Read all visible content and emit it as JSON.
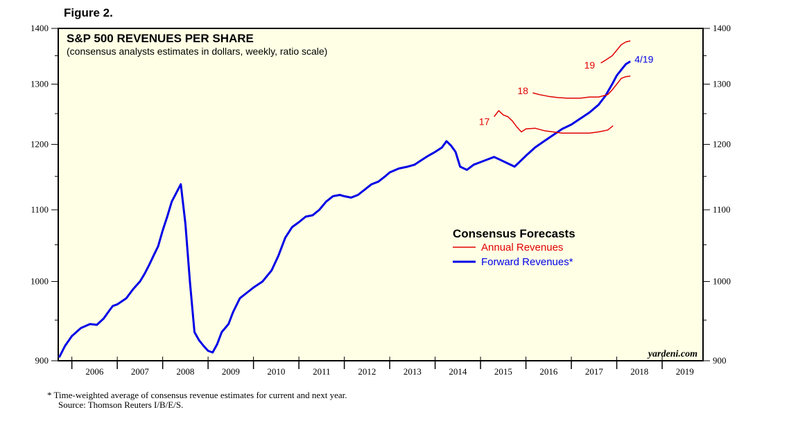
{
  "figure_label": "Figure 2.",
  "footnote": {
    "line1": "*   Time-weighted average of consensus revenue estimates for current and next year.",
    "line2": "Source: Thomson Reuters I/B/E/S."
  },
  "chart_data": {
    "type": "line",
    "title": "S&P 500 REVENUES PER SHARE",
    "subtitle": "(consensus analysts estimates in dollars, weekly, ratio scale)",
    "watermark": "yardeni.com",
    "y_scale": "log",
    "ylim": [
      900,
      1400
    ],
    "xlim": [
      2005.7,
      2019.9
    ],
    "y_ticks": [
      900,
      1000,
      1100,
      1200,
      1300,
      1400
    ],
    "x_tick_labels": [
      "2006",
      "2007",
      "2008",
      "2009",
      "2010",
      "2011",
      "2012",
      "2013",
      "2014",
      "2015",
      "2016",
      "2017",
      "2018",
      "2019"
    ],
    "grid": false,
    "background": "#ffffe5",
    "legend": {
      "title": "Consensus Forecasts",
      "position": "center-right",
      "entries": [
        {
          "label": "Annual Revenues",
          "color": "#e00000"
        },
        {
          "label": "Forward Revenues*",
          "color": "#0000e6"
        }
      ]
    },
    "series": [
      {
        "name": "Forward Revenues*",
        "color": "#0000e6",
        "end_label": "4/19",
        "x": [
          2005.72,
          2005.85,
          2006.0,
          2006.2,
          2006.4,
          2006.55,
          2006.7,
          2006.8,
          2006.9,
          2007.0,
          2007.2,
          2007.35,
          2007.5,
          2007.6,
          2007.7,
          2007.8,
          2007.9,
          2008.0,
          2008.1,
          2008.2,
          2008.3,
          2008.4,
          2008.5,
          2008.6,
          2008.7,
          2008.8,
          2008.9,
          2009.0,
          2009.1,
          2009.2,
          2009.3,
          2009.45,
          2009.55,
          2009.7,
          2009.85,
          2010.0,
          2010.2,
          2010.4,
          2010.55,
          2010.7,
          2010.85,
          2011.0,
          2011.15,
          2011.3,
          2011.45,
          2011.6,
          2011.75,
          2011.9,
          2012.0,
          2012.15,
          2012.3,
          2012.45,
          2012.6,
          2012.75,
          2012.9,
          2013.0,
          2013.2,
          2013.4,
          2013.55,
          2013.7,
          2013.85,
          2014.0,
          2014.15,
          2014.25,
          2014.35,
          2014.45,
          2014.55,
          2014.7,
          2014.85,
          2015.0,
          2015.15,
          2015.3,
          2015.45,
          2015.6,
          2015.75,
          2015.9,
          2016.0,
          2016.2,
          2016.4,
          2016.6,
          2016.8,
          2017.0,
          2017.2,
          2017.4,
          2017.6,
          2017.75,
          2017.9,
          2018.0,
          2018.1,
          2018.2,
          2018.3
        ],
        "y": [
          904,
          918,
          930,
          940,
          945,
          944,
          952,
          960,
          968,
          970,
          978,
          990,
          1000,
          1010,
          1022,
          1035,
          1048,
          1070,
          1090,
          1112,
          1125,
          1138,
          1080,
          1000,
          935,
          925,
          918,
          912,
          910,
          920,
          935,
          945,
          960,
          978,
          985,
          992,
          1000,
          1015,
          1035,
          1060,
          1075,
          1082,
          1090,
          1092,
          1100,
          1112,
          1120,
          1122,
          1120,
          1118,
          1122,
          1130,
          1138,
          1142,
          1150,
          1156,
          1162,
          1165,
          1168,
          1175,
          1182,
          1188,
          1195,
          1205,
          1198,
          1188,
          1165,
          1160,
          1168,
          1172,
          1176,
          1180,
          1175,
          1170,
          1165,
          1175,
          1182,
          1195,
          1205,
          1215,
          1225,
          1232,
          1242,
          1252,
          1265,
          1280,
          1300,
          1315,
          1325,
          1335,
          1340
        ]
      },
      {
        "name": "17",
        "color": "#e00000",
        "x": [
          2015.3,
          2015.4,
          2015.5,
          2015.6,
          2015.7,
          2015.8,
          2015.9,
          2016.0,
          2016.2,
          2016.4,
          2016.6,
          2016.8,
          2017.0,
          2017.2,
          2017.4,
          2017.6,
          2017.8,
          2017.92
        ],
        "y": [
          1245,
          1255,
          1248,
          1245,
          1238,
          1228,
          1220,
          1225,
          1226,
          1222,
          1220,
          1218,
          1218,
          1218,
          1218,
          1220,
          1223,
          1230
        ]
      },
      {
        "name": "18",
        "color": "#e00000",
        "x": [
          2016.15,
          2016.3,
          2016.5,
          2016.7,
          2016.9,
          2017.0,
          2017.2,
          2017.4,
          2017.6,
          2017.8,
          2017.9,
          2018.0,
          2018.1,
          2018.2,
          2018.3
        ],
        "y": [
          1285,
          1282,
          1279,
          1277,
          1276,
          1276,
          1276,
          1278,
          1278,
          1282,
          1290,
          1300,
          1310,
          1313,
          1314
        ]
      },
      {
        "name": "19",
        "color": "#e00000",
        "x": [
          2017.65,
          2017.75,
          2017.9,
          2018.0,
          2018.1,
          2018.2,
          2018.3
        ],
        "y": [
          1337,
          1342,
          1350,
          1360,
          1370,
          1375,
          1377
        ]
      }
    ]
  }
}
